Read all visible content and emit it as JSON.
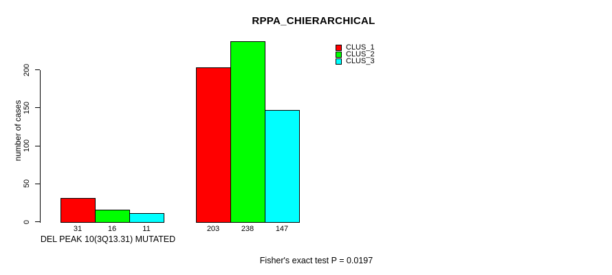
{
  "chart_data": {
    "type": "bar",
    "title": "RPPA_CHIERARCHICAL",
    "xlabel": "",
    "ylabel": "number of cases",
    "categories": [
      "DEL PEAK 10(3Q13.31) MUTATED",
      ""
    ],
    "series": [
      {
        "name": "CLUS_1",
        "color": "#FF0000",
        "values": [
          31,
          203
        ]
      },
      {
        "name": "CLUS_2",
        "color": "#00FF00",
        "values": [
          16,
          238
        ]
      },
      {
        "name": "CLUS_3",
        "color": "#00FFFF",
        "values": [
          11,
          147
        ]
      }
    ],
    "bar_value_labels": [
      [
        "31",
        "16",
        "11"
      ],
      [
        "203",
        "238",
        "147"
      ]
    ],
    "yticks": [
      0,
      50,
      100,
      150,
      200
    ],
    "ylim": [
      0,
      240
    ],
    "grid": false,
    "legend": {
      "position": "top-right",
      "entries": [
        "CLUS_1",
        "CLUS_2",
        "CLUS_3"
      ]
    },
    "annotation": "Fisher's exact test P = 0.0197",
    "axis_color": "#000000",
    "bar_border_color": "#000000"
  }
}
